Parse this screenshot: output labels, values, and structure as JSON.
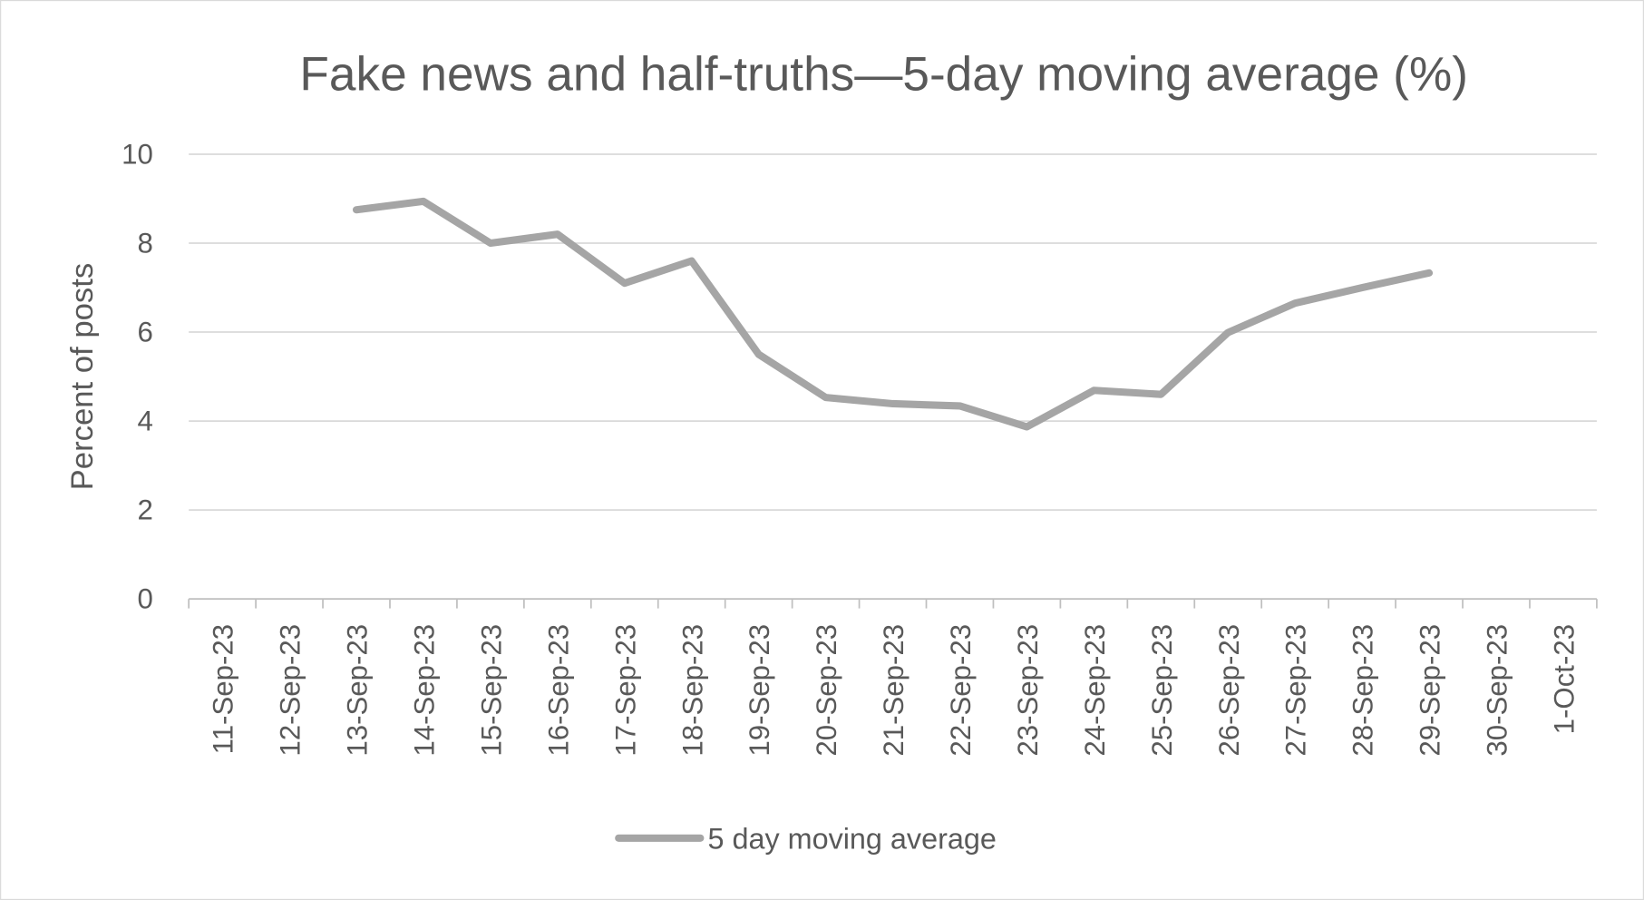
{
  "chart_data": {
    "type": "line",
    "title": "Fake news and half-truths—5-day moving average (%)",
    "xlabel": "",
    "ylabel": "Percent of posts",
    "ylim": [
      0,
      10
    ],
    "yticks": [
      0,
      2,
      4,
      6,
      8,
      10
    ],
    "grid": true,
    "legend_position": "bottom",
    "categories": [
      "11-Sep-23",
      "12-Sep-23",
      "13-Sep-23",
      "14-Sep-23",
      "15-Sep-23",
      "16-Sep-23",
      "17-Sep-23",
      "18-Sep-23",
      "19-Sep-23",
      "20-Sep-23",
      "21-Sep-23",
      "22-Sep-23",
      "23-Sep-23",
      "24-Sep-23",
      "25-Sep-23",
      "26-Sep-23",
      "27-Sep-23",
      "28-Sep-23",
      "29-Sep-23",
      "30-Sep-23",
      "1-Oct-23"
    ],
    "series": [
      {
        "name": "5 day moving average",
        "color": "#a5a5a5",
        "values": [
          null,
          null,
          8.75,
          8.94,
          8.0,
          8.2,
          7.1,
          7.6,
          5.5,
          4.53,
          4.39,
          4.34,
          3.87,
          4.69,
          4.6,
          5.99,
          6.65,
          7.0,
          7.33,
          null,
          null
        ]
      }
    ]
  }
}
